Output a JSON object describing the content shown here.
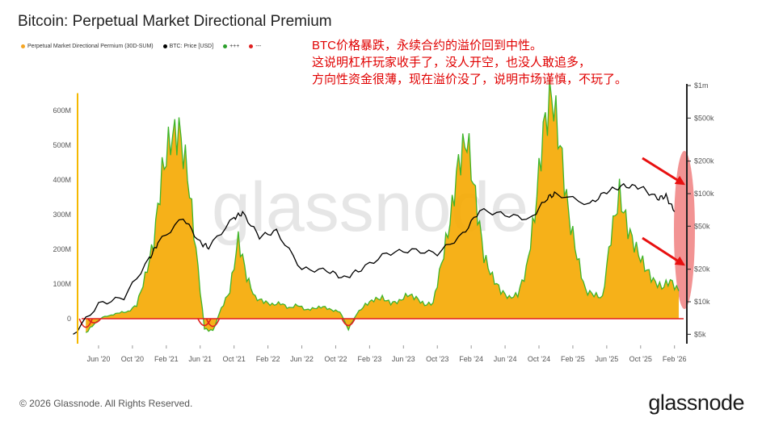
{
  "title": "Bitcoin: Perpetual Market Directional Premium",
  "legend": [
    {
      "label": "Perpetual Market Directional Permium (30D-SUM)",
      "color": "#f5a623"
    },
    {
      "label": "BTC: Price [USD]",
      "color": "#000000"
    },
    {
      "label": "+++",
      "color": "#2ca02c"
    },
    {
      "label": "---",
      "color": "#e02020"
    }
  ],
  "annotation": {
    "line1": "BTC价格暴跌，永续合约的溢价回到中性。",
    "line2": "这说明杠杆玩家收手了，没人开空，也没人敢追多，",
    "line3": "方向性资金很薄，现在溢价没了，说明市场谨慎，不玩了。"
  },
  "watermark": "glassnode",
  "footer": "© 2026 Glassnode. All Rights Reserved.",
  "brand": "glassnode",
  "colors": {
    "premium_fill": "#f5a800",
    "positive_line": "#3fb52a",
    "negative_line": "#e02020",
    "price_line": "#000000",
    "highlight": "#f08080",
    "arrow": "#e81010"
  },
  "chart_data": {
    "type": "area",
    "x_ticks": [
      "Jun '20",
      "Oct '20",
      "Feb '21",
      "Jun '21",
      "Oct '21",
      "Feb '22",
      "Jun '22",
      "Oct '22",
      "Feb '23",
      "Jun '23",
      "Oct '23",
      "Feb '24",
      "Jun '24",
      "Oct '24",
      "Feb '25",
      "Jun '25",
      "Oct '25",
      "Feb '26"
    ],
    "y_left": {
      "ticks": [
        "0",
        "100M",
        "200M",
        "300M",
        "400M",
        "500M",
        "600M"
      ],
      "ylim": [
        -60,
        650
      ]
    },
    "y_right": {
      "scale": "log",
      "ticks": [
        "$5k",
        "$10k",
        "$20k",
        "$50k",
        "$100k",
        "$200k",
        "$500k",
        "$1m"
      ]
    },
    "series": [
      {
        "name": "Perpetual Market Directional Permium (30D-SUM)",
        "unit": "USD (M)",
        "x": [
          "2020-04",
          "2020-05",
          "2020-06",
          "2020-07",
          "2020-08",
          "2020-09",
          "2020-10",
          "2020-11",
          "2020-12",
          "2021-01",
          "2021-02",
          "2021-03",
          "2021-04",
          "2021-05",
          "2021-06",
          "2021-07",
          "2021-08",
          "2021-09",
          "2021-10",
          "2021-11",
          "2021-12",
          "2022-01",
          "2022-02",
          "2022-03",
          "2022-04",
          "2022-05",
          "2022-06",
          "2022-07",
          "2022-08",
          "2022-09",
          "2022-10",
          "2022-11",
          "2022-12",
          "2023-01",
          "2023-02",
          "2023-03",
          "2023-04",
          "2023-05",
          "2023-06",
          "2023-07",
          "2023-08",
          "2023-09",
          "2023-10",
          "2023-11",
          "2023-12",
          "2024-01",
          "2024-02",
          "2024-03",
          "2024-04",
          "2024-05",
          "2024-06",
          "2024-07",
          "2024-08",
          "2024-09",
          "2024-10",
          "2024-11",
          "2024-12",
          "2025-01",
          "2025-02",
          "2025-03",
          "2025-04",
          "2025-05",
          "2025-06",
          "2025-07",
          "2025-08",
          "2025-09",
          "2025-10",
          "2025-11",
          "2025-12",
          "2026-01",
          "2026-02"
        ],
        "values": [
          -40,
          -15,
          5,
          10,
          18,
          20,
          40,
          120,
          220,
          420,
          520,
          540,
          420,
          200,
          -30,
          -35,
          30,
          80,
          230,
          120,
          60,
          50,
          40,
          45,
          30,
          40,
          25,
          30,
          35,
          25,
          20,
          -30,
          15,
          40,
          55,
          60,
          45,
          50,
          70,
          60,
          40,
          45,
          160,
          280,
          450,
          520,
          350,
          180,
          120,
          80,
          60,
          70,
          140,
          300,
          540,
          650,
          500,
          300,
          180,
          80,
          70,
          60,
          240,
          360,
          260,
          200,
          150,
          110,
          90,
          110,
          80
        ]
      },
      {
        "name": "BTC: Price [USD]",
        "unit": "USD",
        "x": [
          "2020-03",
          "2020-06",
          "2020-09",
          "2020-12",
          "2021-01",
          "2021-04",
          "2021-06",
          "2021-07",
          "2021-10",
          "2021-11",
          "2022-01",
          "2022-03",
          "2022-06",
          "2022-09",
          "2022-11",
          "2023-01",
          "2023-04",
          "2023-07",
          "2023-10",
          "2024-01",
          "2024-03",
          "2024-06",
          "2024-09",
          "2024-11",
          "2024-12",
          "2025-04",
          "2025-06",
          "2025-08",
          "2025-10",
          "2025-12",
          "2026-01",
          "2026-02"
        ],
        "values": [
          5000,
          9500,
          11000,
          25000,
          35000,
          60000,
          35000,
          32000,
          60000,
          66000,
          40000,
          45000,
          20000,
          19500,
          16500,
          20000,
          28000,
          30000,
          28000,
          42000,
          70000,
          64000,
          58000,
          92000,
          100000,
          80000,
          105000,
          118000,
          115000,
          90000,
          95000,
          68000
        ]
      }
    ]
  }
}
